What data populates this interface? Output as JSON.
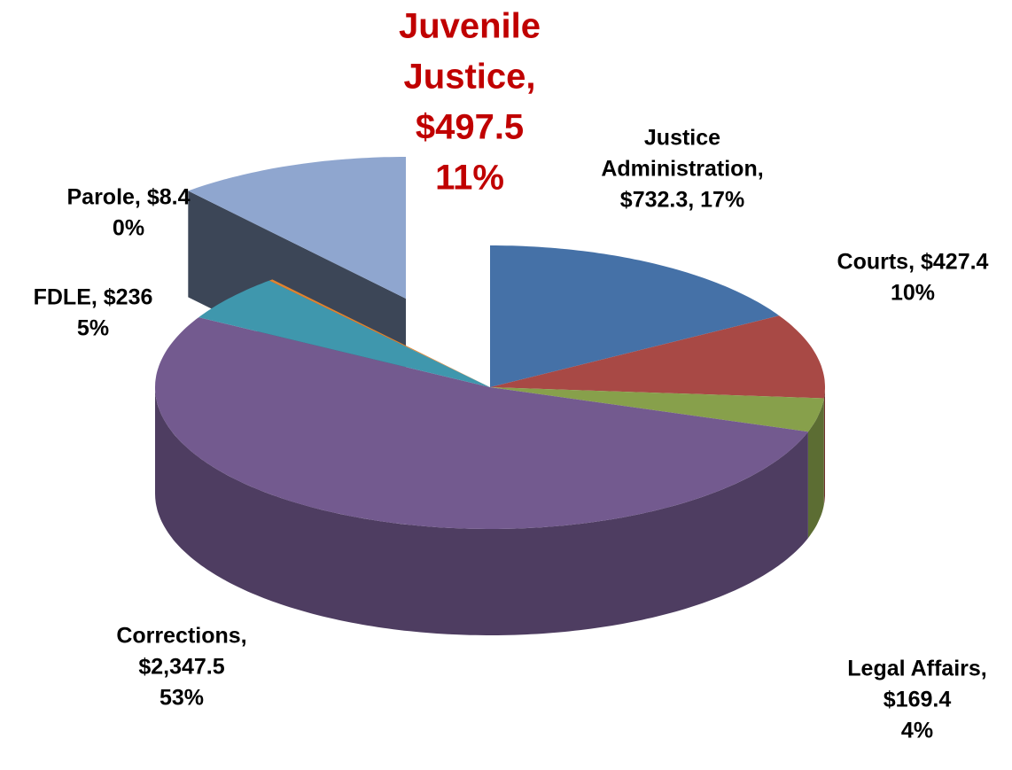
{
  "chart_data": {
    "type": "pie",
    "values": [
      732.3,
      427.4,
      169.4,
      2347.5,
      236,
      8.4,
      497.5
    ],
    "value_labels": [
      [
        "Justice",
        "Administration,",
        "$732.3, 17%"
      ],
      [
        "Courts,  $427.4",
        "10%"
      ],
      [
        "Legal Affairs,",
        "$169.4",
        "4%"
      ],
      [
        "Corrections,",
        "$2,347.5",
        "53%"
      ],
      [
        "FDLE,  $236",
        "5%"
      ],
      [
        "Parole,  $8.4",
        "0%"
      ],
      [
        "Juvenile",
        "Justice,",
        "$497.5",
        "11%"
      ]
    ],
    "colors": [
      "#4571a7",
      "#a84945",
      "#87a04b",
      "#735a8f",
      "#3f97ad",
      "#e0832f",
      "#8fa6cf"
    ],
    "exploded": [
      6
    ]
  }
}
